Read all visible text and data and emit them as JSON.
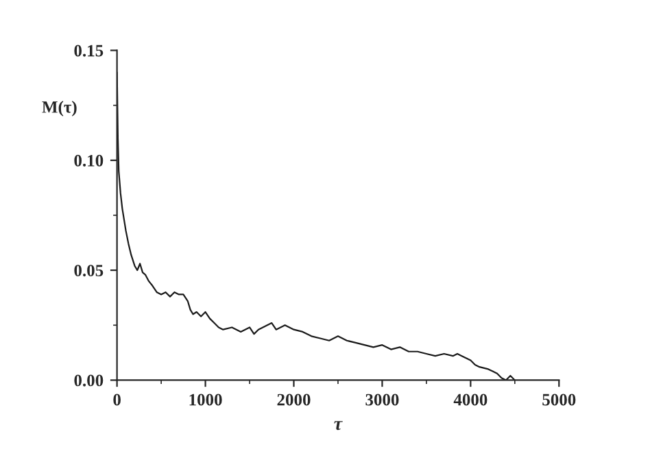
{
  "chart_data": {
    "type": "line",
    "xlabel": "τ",
    "ylabel": "M(τ)",
    "xlim": [
      0,
      5000
    ],
    "ylim": [
      0,
      0.15
    ],
    "xticks": [
      0,
      1000,
      2000,
      3000,
      4000,
      5000
    ],
    "yticks": [
      {
        "value": 0,
        "label": "0.00"
      },
      {
        "value": 0.05,
        "label": "0.05"
      },
      {
        "value": 0.1,
        "label": "0.10"
      },
      {
        "value": 0.15,
        "label": "0.15"
      }
    ],
    "grid": false,
    "legend": false,
    "marker": "none",
    "line_style": "solid",
    "series": [
      {
        "color": "#1a1a1a",
        "x": [
          0,
          10,
          20,
          40,
          60,
          80,
          100,
          130,
          160,
          200,
          230,
          260,
          290,
          320,
          360,
          400,
          450,
          500,
          550,
          600,
          650,
          700,
          750,
          800,
          830,
          860,
          900,
          950,
          1000,
          1050,
          1100,
          1150,
          1200,
          1300,
          1400,
          1500,
          1550,
          1600,
          1700,
          1750,
          1800,
          1900,
          2000,
          2100,
          2200,
          2300,
          2400,
          2500,
          2600,
          2700,
          2800,
          2900,
          3000,
          3100,
          3200,
          3300,
          3400,
          3500,
          3600,
          3700,
          3800,
          3850,
          3900,
          4000,
          4050,
          4100,
          4200,
          4250,
          4300,
          4350,
          4400,
          4450,
          4500
        ],
        "values": [
          0.14,
          0.11,
          0.095,
          0.085,
          0.078,
          0.073,
          0.068,
          0.062,
          0.057,
          0.052,
          0.05,
          0.053,
          0.049,
          0.048,
          0.045,
          0.043,
          0.04,
          0.039,
          0.04,
          0.038,
          0.04,
          0.039,
          0.039,
          0.036,
          0.032,
          0.03,
          0.031,
          0.029,
          0.031,
          0.028,
          0.026,
          0.024,
          0.023,
          0.024,
          0.022,
          0.024,
          0.021,
          0.023,
          0.025,
          0.026,
          0.023,
          0.025,
          0.023,
          0.022,
          0.02,
          0.019,
          0.018,
          0.02,
          0.018,
          0.017,
          0.016,
          0.015,
          0.016,
          0.014,
          0.015,
          0.013,
          0.013,
          0.012,
          0.011,
          0.012,
          0.011,
          0.012,
          0.011,
          0.009,
          0.007,
          0.006,
          0.005,
          0.004,
          0.003,
          0.001,
          0.0,
          0.002,
          0.0
        ]
      }
    ]
  }
}
